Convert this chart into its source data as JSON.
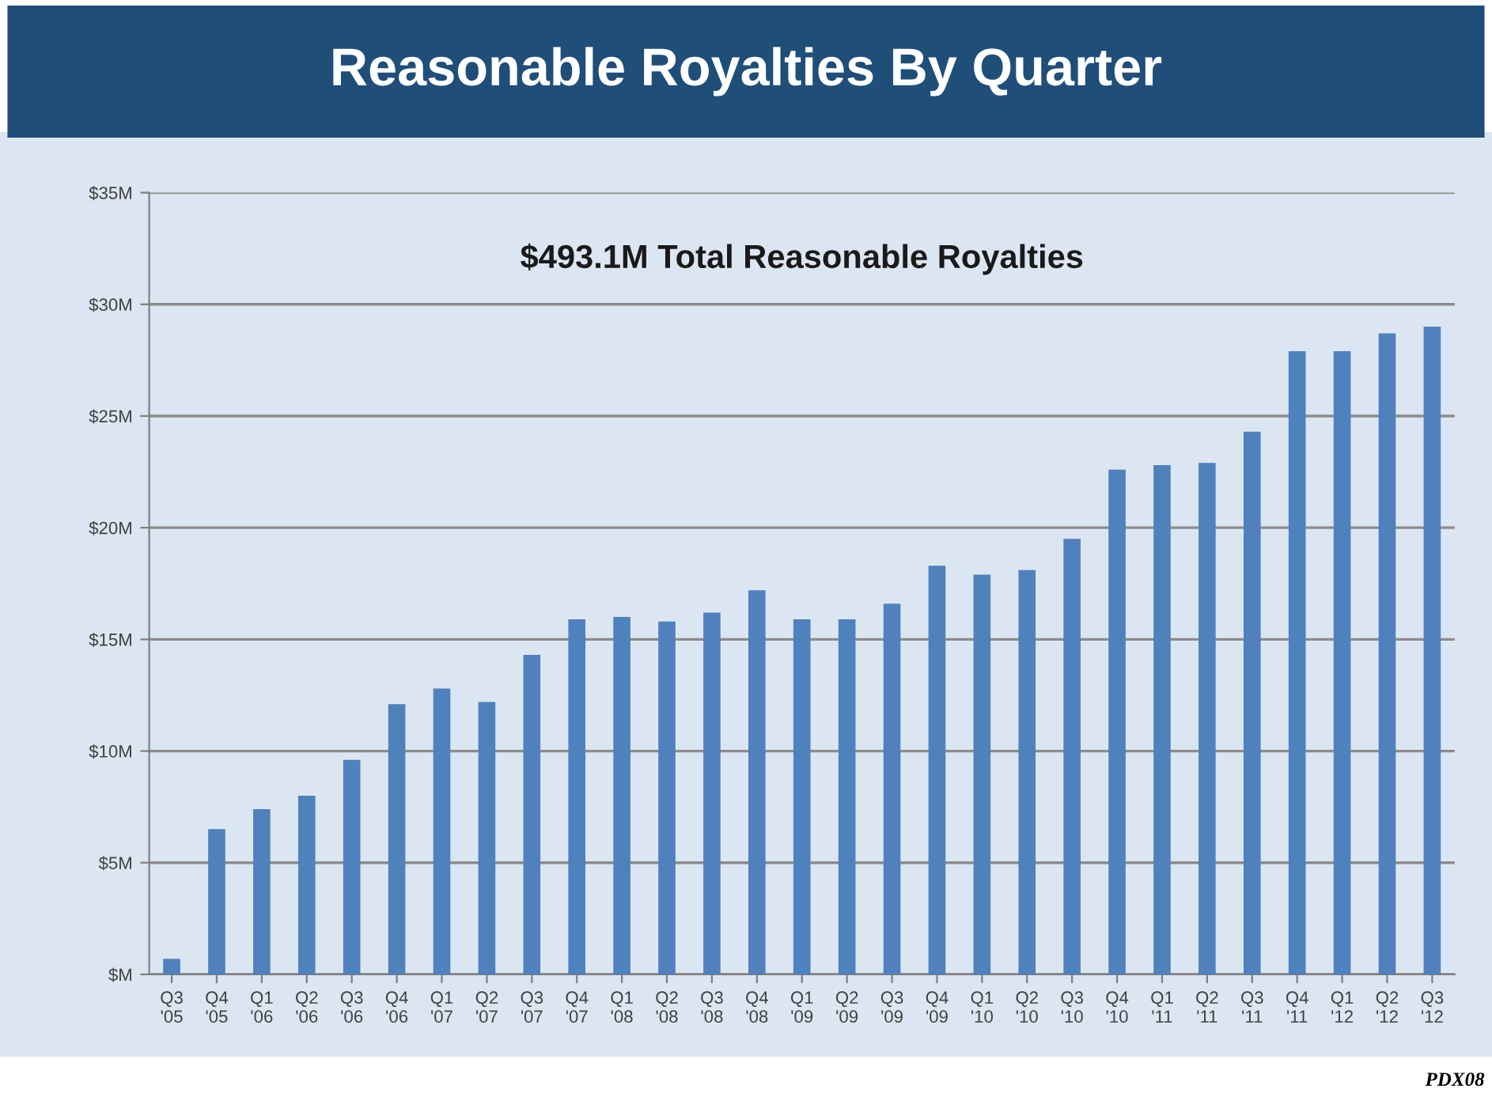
{
  "chart_data": {
    "type": "bar",
    "title": "Reasonable Royalties By Quarter",
    "subtitle": "$493.1M Total Reasonable Royalties",
    "categories": [
      "Q3\n'05",
      "Q4\n'05",
      "Q1\n'06",
      "Q2\n'06",
      "Q3\n'06",
      "Q4\n'06",
      "Q1\n'07",
      "Q2\n'07",
      "Q3\n'07",
      "Q4\n'07",
      "Q1\n'08",
      "Q2\n'08",
      "Q3\n'08",
      "Q4\n'08",
      "Q1\n'09",
      "Q2\n'09",
      "Q3\n'09",
      "Q4\n'09",
      "Q1\n'10",
      "Q2\n'10",
      "Q3\n'10",
      "Q4\n'10",
      "Q1\n'11",
      "Q2\n'11",
      "Q3\n'11",
      "Q4\n'11",
      "Q1\n'12",
      "Q2\n'12",
      "Q3\n'12"
    ],
    "values": [
      0.7,
      6.5,
      7.4,
      8.0,
      9.6,
      12.1,
      12.8,
      12.2,
      14.3,
      15.9,
      16.0,
      15.8,
      16.2,
      17.2,
      15.9,
      15.9,
      16.6,
      18.3,
      17.9,
      18.1,
      19.5,
      22.6,
      22.8,
      22.9,
      24.3,
      27.9,
      27.9,
      28.7,
      29.0
    ],
    "color": "#4f81bd",
    "ylim": [
      0,
      35
    ],
    "yticks": [
      {
        "value": 0,
        "label": "$M"
      },
      {
        "value": 5,
        "label": "$5M"
      },
      {
        "value": 10,
        "label": "$10M"
      },
      {
        "value": 15,
        "label": "$15M"
      },
      {
        "value": 20,
        "label": "$20M"
      },
      {
        "value": 25,
        "label": "$25M"
      },
      {
        "value": 30,
        "label": "$30M"
      },
      {
        "value": 35,
        "label": "$35M"
      }
    ],
    "grid": "y",
    "annotations": [
      "PDX08"
    ]
  }
}
